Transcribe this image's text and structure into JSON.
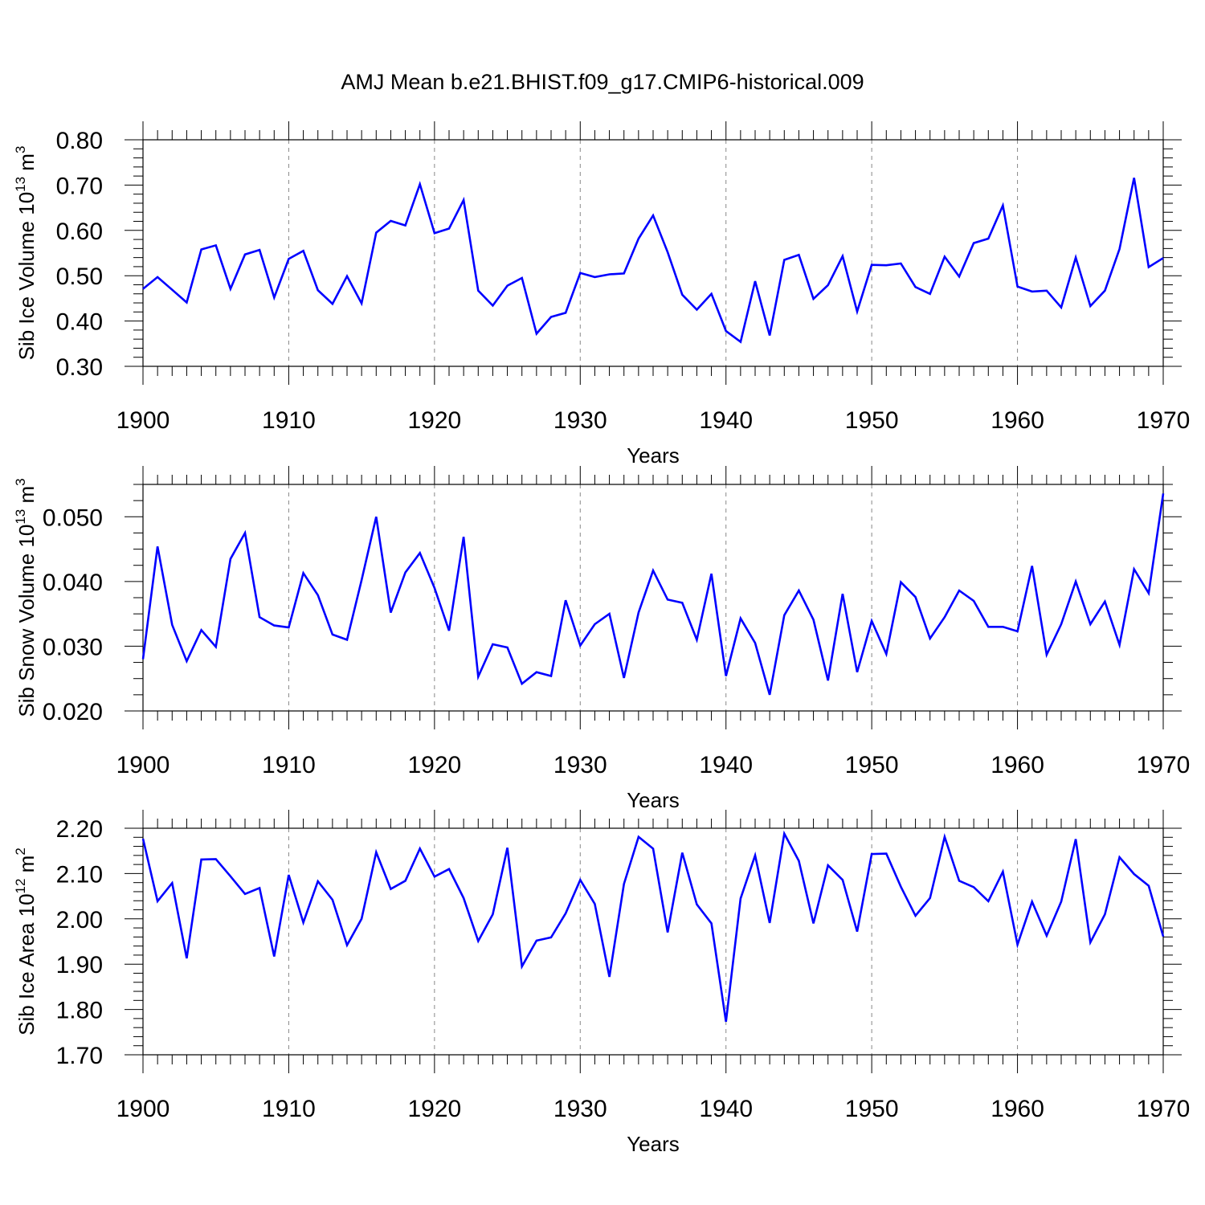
{
  "chart_data": [
    {
      "type": "line",
      "title": "AMJ Mean b.e21.BHIST.f09_g17.CMIP6-historical.009",
      "xlabel": "Years",
      "ylabel": "Sib Ice Volume 10",
      "ylabel_exp": "13",
      "ylabel_unit": "m",
      "ylabel_unit_exp": "3",
      "xlim": [
        1900,
        1970
      ],
      "ylim": [
        0.3,
        0.8
      ],
      "grid": "vertical-dashed",
      "color": "#0000ff",
      "xticks": [
        {
          "value": 1900,
          "label": "1900"
        },
        {
          "value": 1910,
          "label": "1910"
        },
        {
          "value": 1920,
          "label": "1920"
        },
        {
          "value": 1930,
          "label": "1930"
        },
        {
          "value": 1940,
          "label": "1940"
        },
        {
          "value": 1950,
          "label": "1950"
        },
        {
          "value": 1960,
          "label": "1960"
        },
        {
          "value": 1970,
          "label": "1970"
        }
      ],
      "yticks": [
        {
          "value": 0.3,
          "label": "0.30"
        },
        {
          "value": 0.4,
          "label": "0.40"
        },
        {
          "value": 0.5,
          "label": "0.50"
        },
        {
          "value": 0.6,
          "label": "0.60"
        },
        {
          "value": 0.7,
          "label": "0.70"
        },
        {
          "value": 0.8,
          "label": "0.80"
        }
      ],
      "x_start": 1900,
      "values": [
        0.471,
        0.497,
        0.469,
        0.441,
        0.558,
        0.567,
        0.471,
        0.547,
        0.557,
        0.452,
        0.537,
        0.555,
        0.468,
        0.438,
        0.499,
        0.439,
        0.595,
        0.621,
        0.611,
        0.702,
        0.594,
        0.604,
        0.667,
        0.467,
        0.434,
        0.478,
        0.495,
        0.372,
        0.409,
        0.418,
        0.506,
        0.497,
        0.503,
        0.505,
        0.582,
        0.633,
        0.552,
        0.458,
        0.425,
        0.46,
        0.378,
        0.354,
        0.488,
        0.368,
        0.535,
        0.546,
        0.449,
        0.479,
        0.543,
        0.421,
        0.524,
        0.523,
        0.527,
        0.475,
        0.46,
        0.542,
        0.498,
        0.572,
        0.582,
        0.655,
        0.476,
        0.465,
        0.467,
        0.43,
        0.54,
        0.433,
        0.467,
        0.559,
        0.716,
        0.519,
        0.539
      ]
    },
    {
      "type": "line",
      "xlabel": "Years",
      "ylabel": "Sib Snow Volume 10",
      "ylabel_exp": "13",
      "ylabel_unit": "m",
      "ylabel_unit_exp": "3",
      "xlim": [
        1900,
        1970
      ],
      "ylim": [
        0.02,
        0.055
      ],
      "grid": "vertical-dashed",
      "color": "#0000ff",
      "xticks": [
        {
          "value": 1900,
          "label": "1900"
        },
        {
          "value": 1910,
          "label": "1910"
        },
        {
          "value": 1920,
          "label": "1920"
        },
        {
          "value": 1930,
          "label": "1930"
        },
        {
          "value": 1940,
          "label": "1940"
        },
        {
          "value": 1950,
          "label": "1950"
        },
        {
          "value": 1960,
          "label": "1960"
        },
        {
          "value": 1970,
          "label": "1970"
        }
      ],
      "yticks": [
        {
          "value": 0.02,
          "label": "0.020"
        },
        {
          "value": 0.03,
          "label": "0.030"
        },
        {
          "value": 0.04,
          "label": "0.040"
        },
        {
          "value": 0.05,
          "label": "0.050"
        }
      ],
      "x_start": 1900,
      "values": [
        0.028,
        0.0454,
        0.0333,
        0.0277,
        0.0325,
        0.0299,
        0.0435,
        0.0475,
        0.0345,
        0.0332,
        0.0329,
        0.0413,
        0.0379,
        0.0318,
        0.031,
        0.0402,
        0.05,
        0.0352,
        0.0414,
        0.0444,
        0.039,
        0.0324,
        0.0469,
        0.0253,
        0.0303,
        0.0298,
        0.0242,
        0.026,
        0.0254,
        0.0371,
        0.0301,
        0.0334,
        0.035,
        0.0251,
        0.0352,
        0.0417,
        0.0372,
        0.0367,
        0.031,
        0.0412,
        0.0254,
        0.0343,
        0.0305,
        0.0225,
        0.0348,
        0.0386,
        0.0341,
        0.0247,
        0.0381,
        0.026,
        0.0339,
        0.0288,
        0.0399,
        0.0376,
        0.0312,
        0.0345,
        0.0386,
        0.037,
        0.033,
        0.033,
        0.0323,
        0.0424,
        0.0287,
        0.0334,
        0.04,
        0.0334,
        0.0369,
        0.0302,
        0.0419,
        0.0382,
        0.0536
      ]
    },
    {
      "type": "line",
      "xlabel": "Years",
      "ylabel": "Sib Ice Area 10",
      "ylabel_exp": "12",
      "ylabel_unit": "m",
      "ylabel_unit_exp": "2",
      "xlim": [
        1900,
        1970
      ],
      "ylim": [
        1.7,
        2.2
      ],
      "grid": "vertical-dashed",
      "color": "#0000ff",
      "xticks": [
        {
          "value": 1900,
          "label": "1900"
        },
        {
          "value": 1910,
          "label": "1910"
        },
        {
          "value": 1920,
          "label": "1920"
        },
        {
          "value": 1930,
          "label": "1930"
        },
        {
          "value": 1940,
          "label": "1940"
        },
        {
          "value": 1950,
          "label": "1950"
        },
        {
          "value": 1960,
          "label": "1960"
        },
        {
          "value": 1970,
          "label": "1970"
        }
      ],
      "yticks": [
        {
          "value": 1.7,
          "label": "1.70"
        },
        {
          "value": 1.8,
          "label": "1.80"
        },
        {
          "value": 1.9,
          "label": "1.90"
        },
        {
          "value": 2.0,
          "label": "2.00"
        },
        {
          "value": 2.1,
          "label": "2.10"
        },
        {
          "value": 2.2,
          "label": "2.20"
        }
      ],
      "x_start": 1900,
      "values": [
        2.177,
        2.039,
        2.079,
        1.913,
        2.131,
        2.132,
        2.094,
        2.055,
        2.068,
        1.917,
        2.097,
        1.992,
        2.083,
        2.042,
        1.942,
        2.0,
        2.147,
        2.066,
        2.084,
        2.155,
        2.093,
        2.11,
        2.046,
        1.951,
        2.01,
        2.157,
        1.895,
        1.952,
        1.959,
        2.012,
        2.086,
        2.033,
        1.872,
        2.077,
        2.181,
        2.155,
        1.97,
        2.146,
        2.032,
        1.99,
        1.773,
        2.045,
        2.14,
        1.991,
        2.188,
        2.128,
        1.99,
        2.118,
        2.086,
        1.972,
        2.143,
        2.144,
        2.071,
        2.007,
        2.046,
        2.181,
        2.084,
        2.07,
        2.039,
        2.104,
        1.943,
        2.038,
        1.963,
        2.038,
        2.176,
        1.948,
        2.01,
        2.136,
        2.099,
        2.073,
        1.961
      ]
    }
  ]
}
